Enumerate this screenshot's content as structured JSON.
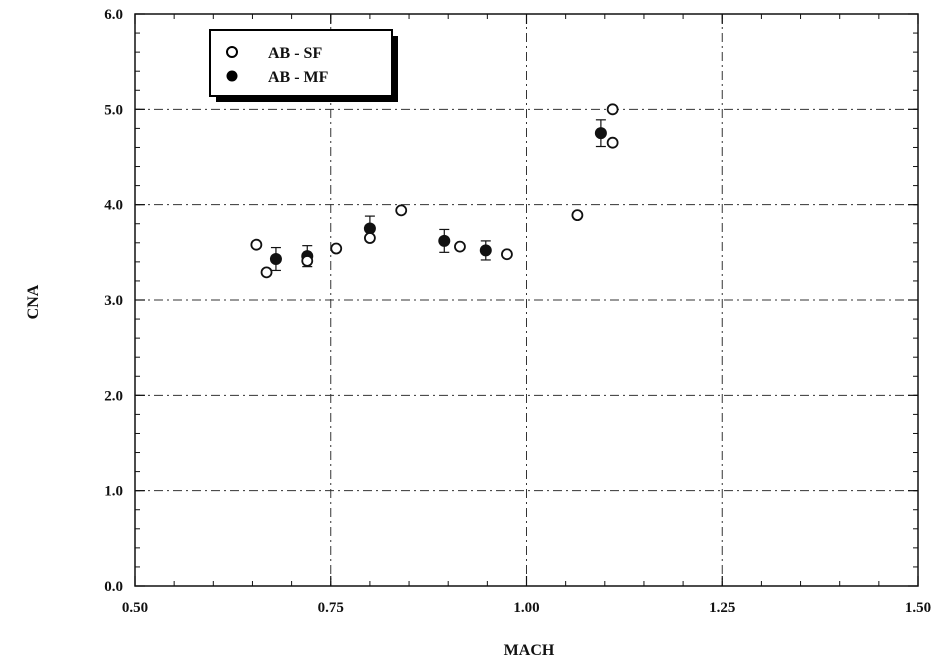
{
  "chart_data": {
    "type": "scatter",
    "xlabel": "MACH",
    "ylabel": "CNA",
    "xlim": [
      0.5,
      1.5
    ],
    "ylim": [
      0.0,
      6.0
    ],
    "x_ticks": [
      "0.50",
      "0.75",
      "1.00",
      "1.25",
      "1.50"
    ],
    "y_ticks": [
      "0.0",
      "1.0",
      "2.0",
      "3.0",
      "4.0",
      "5.0",
      "6.0"
    ],
    "grid": "dash-dot",
    "legend_position": "top-left",
    "series": [
      {
        "name": "AB - SF",
        "marker": "open-circle",
        "points": [
          {
            "x": 0.655,
            "y": 3.58
          },
          {
            "x": 0.668,
            "y": 3.29
          },
          {
            "x": 0.72,
            "y": 3.41
          },
          {
            "x": 0.757,
            "y": 3.54
          },
          {
            "x": 0.8,
            "y": 3.65
          },
          {
            "x": 0.84,
            "y": 3.94
          },
          {
            "x": 0.915,
            "y": 3.56
          },
          {
            "x": 0.975,
            "y": 3.48
          },
          {
            "x": 1.065,
            "y": 3.89
          },
          {
            "x": 1.11,
            "y": 5.0
          },
          {
            "x": 1.11,
            "y": 4.65
          }
        ]
      },
      {
        "name": "AB - MF",
        "marker": "filled-circle",
        "points": [
          {
            "x": 0.68,
            "y": 3.43,
            "err": 0.12
          },
          {
            "x": 0.72,
            "y": 3.46,
            "err": 0.11
          },
          {
            "x": 0.8,
            "y": 3.75,
            "err": 0.13
          },
          {
            "x": 0.895,
            "y": 3.62,
            "err": 0.12
          },
          {
            "x": 0.948,
            "y": 3.52,
            "err": 0.1
          },
          {
            "x": 1.095,
            "y": 4.75,
            "err": 0.14
          }
        ]
      }
    ],
    "colors": {
      "axis": "#111111",
      "grid": "#333333",
      "marker": "#111111"
    }
  }
}
